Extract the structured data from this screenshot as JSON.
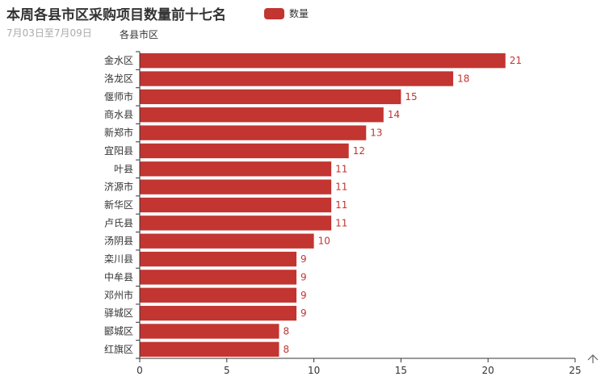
{
  "header": {
    "title": "本周各县市区采购项目数量前十七名",
    "subtitle": "7月03日至7月09日"
  },
  "legend": {
    "label": "数量"
  },
  "colors": {
    "bar": "#c23531",
    "axis": "#333333"
  },
  "scroll_icon": "arrow-up-icon",
  "chart_data": {
    "type": "bar",
    "orientation": "horizontal",
    "title": "本周各县市区采购项目数量前十七名",
    "subtitle": "7月03日至7月09日",
    "ylabel": "各县市区",
    "xlabel": "",
    "categories": [
      "金水区",
      "洛龙区",
      "偃师市",
      "商水县",
      "新郑市",
      "宜阳县",
      "叶县",
      "济源市",
      "新华区",
      "卢氏县",
      "汤阴县",
      "栾川县",
      "中牟县",
      "邓州市",
      "驿城区",
      "郾城区",
      "红旗区"
    ],
    "series": [
      {
        "name": "数量",
        "values": [
          21,
          18,
          15,
          14,
          13,
          12,
          11,
          11,
          11,
          11,
          10,
          9,
          9,
          9,
          9,
          8,
          8
        ]
      }
    ],
    "xlim": [
      0,
      25
    ],
    "xticks": [
      0,
      5,
      10,
      15,
      20,
      25
    ],
    "grid": false,
    "legend_position": "top-center"
  }
}
